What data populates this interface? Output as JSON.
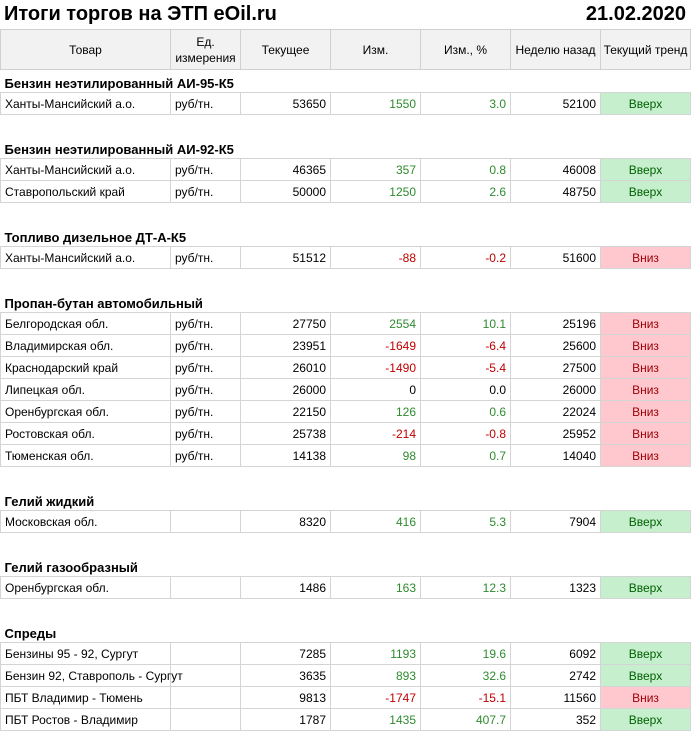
{
  "title": "Итоги торгов на ЭТП eOil.ru",
  "date": "21.02.2020",
  "headers": {
    "product": "Товар",
    "unit": "Ед. измерения",
    "current": "Текущее",
    "change": "Изм.",
    "change_pct": "Изм., %",
    "week_ago": "Неделю назад",
    "trend": "Текущий тренд"
  },
  "sections": [
    {
      "name": "Бензин неэтилированный АИ-95-К5",
      "rows": [
        {
          "region": "Ханты-Мансийский а.о.",
          "unit": "руб/тн.",
          "current": "53650",
          "change": "1550",
          "change_pct": "3.0",
          "week_ago": "52100",
          "trend": "Вверх",
          "dir": "up"
        }
      ]
    },
    {
      "name": "Бензин неэтилированный АИ-92-К5",
      "rows": [
        {
          "region": "Ханты-Мансийский а.о.",
          "unit": "руб/тн.",
          "current": "46365",
          "change": "357",
          "change_pct": "0.8",
          "week_ago": "46008",
          "trend": "Вверх",
          "dir": "up"
        },
        {
          "region": "Ставропольский край",
          "unit": "руб/тн.",
          "current": "50000",
          "change": "1250",
          "change_pct": "2.6",
          "week_ago": "48750",
          "trend": "Вверх",
          "dir": "up"
        }
      ]
    },
    {
      "name": "Топливо дизельное ДТ-А-К5",
      "rows": [
        {
          "region": "Ханты-Мансийский а.о.",
          "unit": "руб/тн.",
          "current": "51512",
          "change": "-88",
          "change_pct": "-0.2",
          "week_ago": "51600",
          "trend": "Вниз",
          "dir": "down"
        }
      ]
    },
    {
      "name": "Пропан-бутан автомобильный",
      "rows": [
        {
          "region": "Белгородская обл.",
          "unit": "руб/тн.",
          "current": "27750",
          "change": "2554",
          "change_pct": "10.1",
          "week_ago": "25196",
          "trend": "Вниз",
          "dir": "down"
        },
        {
          "region": "Владимирская обл.",
          "unit": "руб/тн.",
          "current": "23951",
          "change": "-1649",
          "change_pct": "-6.4",
          "week_ago": "25600",
          "trend": "Вниз",
          "dir": "down"
        },
        {
          "region": "Краснодарский край",
          "unit": "руб/тн.",
          "current": "26010",
          "change": "-1490",
          "change_pct": "-5.4",
          "week_ago": "27500",
          "trend": "Вниз",
          "dir": "down"
        },
        {
          "region": "Липецкая обл.",
          "unit": "руб/тн.",
          "current": "26000",
          "change": "0",
          "change_pct": "0.0",
          "week_ago": "26000",
          "trend": "Вниз",
          "dir": "down"
        },
        {
          "region": "Оренбургская обл.",
          "unit": "руб/тн.",
          "current": "22150",
          "change": "126",
          "change_pct": "0.6",
          "week_ago": "22024",
          "trend": "Вниз",
          "dir": "down"
        },
        {
          "region": "Ростовская обл.",
          "unit": "руб/тн.",
          "current": "25738",
          "change": "-214",
          "change_pct": "-0.8",
          "week_ago": "25952",
          "trend": "Вниз",
          "dir": "down"
        },
        {
          "region": "Тюменская обл.",
          "unit": "руб/тн.",
          "current": "14138",
          "change": "98",
          "change_pct": "0.7",
          "week_ago": "14040",
          "trend": "Вниз",
          "dir": "down"
        }
      ]
    },
    {
      "name": "Гелий жидкий",
      "rows": [
        {
          "region": "Московская обл.",
          "unit": "",
          "current": "8320",
          "change": "416",
          "change_pct": "5.3",
          "week_ago": "7904",
          "trend": "Вверх",
          "dir": "up"
        }
      ]
    },
    {
      "name": "Гелий газообразный",
      "rows": [
        {
          "region": "Оренбургская обл.",
          "unit": "",
          "current": "1486",
          "change": "163",
          "change_pct": "12.3",
          "week_ago": "1323",
          "trend": "Вверх",
          "dir": "up"
        }
      ]
    },
    {
      "name": "Спреды",
      "rows": [
        {
          "region": "Бензины 95 - 92, Сургут",
          "unit": "",
          "current": "7285",
          "change": "1193",
          "change_pct": "19.6",
          "week_ago": "6092",
          "trend": "Вверх",
          "dir": "up"
        },
        {
          "region": "Бензин 92, Ставрополь - Сургут",
          "unit": "",
          "current": "3635",
          "change": "893",
          "change_pct": "32.6",
          "week_ago": "2742",
          "trend": "Вверх",
          "dir": "up"
        },
        {
          "region": "ПБТ Владимир - Тюмень",
          "unit": "",
          "current": "9813",
          "change": "-1747",
          "change_pct": "-15.1",
          "week_ago": "11560",
          "trend": "Вниз",
          "dir": "down"
        },
        {
          "region": "ПБТ Ростов - Владимир",
          "unit": "",
          "current": "1787",
          "change": "1435",
          "change_pct": "407.7",
          "week_ago": "352",
          "trend": "Вверх",
          "dir": "up"
        }
      ]
    }
  ],
  "colors": {
    "positive_text": "#2e8b2e",
    "negative_text": "#c00000",
    "trend_up_bg": "#c6efce",
    "trend_down_bg": "#ffc7ce"
  }
}
